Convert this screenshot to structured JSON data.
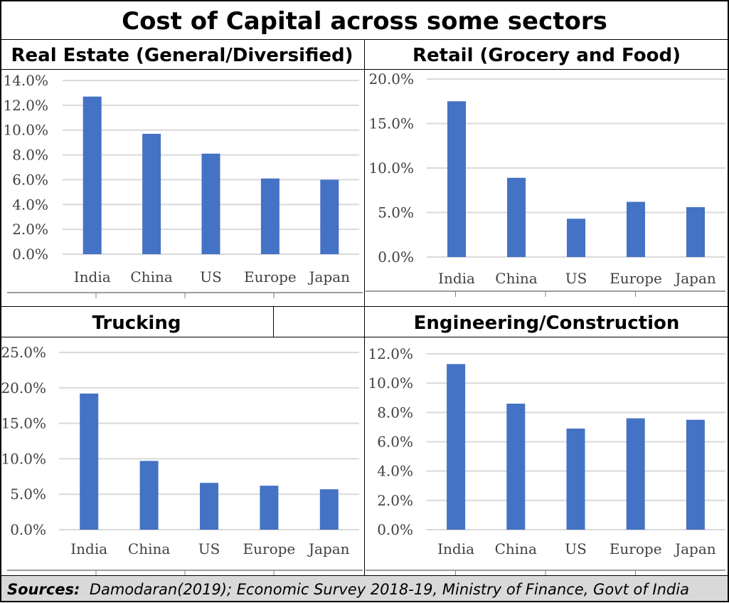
{
  "title": "Cost of Capital across some sectors",
  "sources": {
    "label": "Sources:",
    "text": "Damodaran(2019); Economic Survey 2018-19, Ministry of Finance, Govt of India"
  },
  "colors": {
    "bar": "#4472c4",
    "grid": "#d9d9d9",
    "text": "#404040"
  },
  "chart_data": [
    {
      "type": "bar",
      "title": "Real Estate (General/Diversified)",
      "categories": [
        "India",
        "China",
        "US",
        "Europe",
        "Japan"
      ],
      "values": [
        12.7,
        9.7,
        8.1,
        6.1,
        6.0
      ],
      "yticks": [
        "0.0%",
        "2.0%",
        "4.0%",
        "6.0%",
        "8.0%",
        "10.0%",
        "12.0%",
        "14.0%"
      ],
      "ylim": [
        0,
        14
      ],
      "grid": true
    },
    {
      "type": "bar",
      "title": "Retail (Grocery and Food)",
      "categories": [
        "India",
        "China",
        "US",
        "Europe",
        "Japan"
      ],
      "values": [
        17.5,
        8.9,
        4.3,
        6.2,
        5.6
      ],
      "yticks": [
        "0.0%",
        "5.0%",
        "10.0%",
        "15.0%",
        "20.0%"
      ],
      "ylim": [
        0,
        20
      ],
      "grid": true
    },
    {
      "type": "bar",
      "title": "Trucking",
      "categories": [
        "India",
        "China",
        "US",
        "Europe",
        "Japan"
      ],
      "values": [
        19.2,
        9.7,
        6.6,
        6.2,
        5.7
      ],
      "yticks": [
        "0.0%",
        "5.0%",
        "10.0%",
        "15.0%",
        "20.0%",
        "25.0%"
      ],
      "ylim": [
        0,
        25
      ],
      "grid": true
    },
    {
      "type": "bar",
      "title": "Engineering/Construction",
      "categories": [
        "India",
        "China",
        "US",
        "Europe",
        "Japan"
      ],
      "values": [
        11.3,
        8.6,
        6.9,
        7.6,
        7.5
      ],
      "yticks": [
        "0.0%",
        "2.0%",
        "4.0%",
        "6.0%",
        "8.0%",
        "10.0%",
        "12.0%"
      ],
      "ylim": [
        0,
        12
      ],
      "grid": true
    }
  ]
}
